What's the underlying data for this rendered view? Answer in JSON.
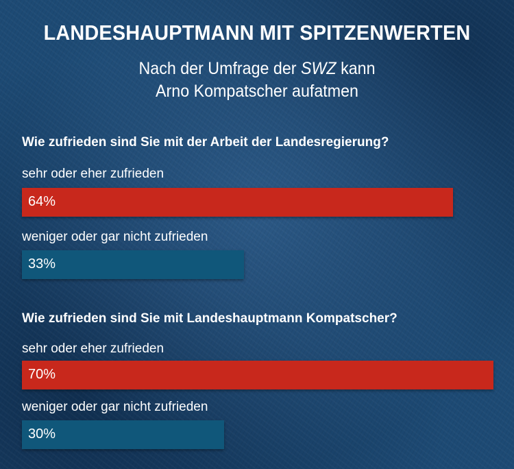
{
  "header": {
    "title": "LANDESHAUPTMANN MIT SPITZENWERTEN",
    "subtitle_line1_pre": "Nach der Umfrage der ",
    "subtitle_line1_em": "SWZ",
    "subtitle_line1_post": " kann",
    "subtitle_line2": "Arno Kompatscher aufatmen"
  },
  "colors": {
    "positive": "#c8281c",
    "negative": "#10577a"
  },
  "chart_data": [
    {
      "type": "bar",
      "orientation": "horizontal",
      "title": "Wie zufrieden sind Sie mit der Arbeit der Landesregierung?",
      "categories": [
        "sehr oder eher zufrieden",
        "weniger oder gar nicht zufrieden"
      ],
      "values": [
        64,
        33
      ],
      "value_labels": [
        "64%",
        "33%"
      ],
      "unit": "%",
      "xlim": [
        0,
        70
      ]
    },
    {
      "type": "bar",
      "orientation": "horizontal",
      "title": "Wie zufrieden sind Sie mit Landeshauptmann Kompatscher?",
      "categories": [
        "sehr oder eher zufrieden",
        "weniger oder gar nicht zufrieden"
      ],
      "values": [
        70,
        30
      ],
      "value_labels": [
        "70%",
        "30%"
      ],
      "unit": "%",
      "xlim": [
        0,
        70
      ]
    }
  ]
}
